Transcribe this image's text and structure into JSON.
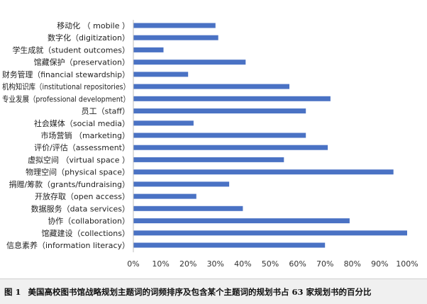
{
  "chart_data": {
    "type": "bar",
    "orientation": "horizontal",
    "categories": [
      "移动化 （ mobile ）",
      "数字化（digitization）",
      "学生成就（student outcomes）",
      "馆藏保护（preservation）",
      "财务管理（financial stewardship）",
      "机构知识库（institutional repositories）",
      "专业发展（professional development）",
      "员工（staff）",
      "社会媒体（social media）",
      "市场营销 （marketing）",
      "评价/评估（assessment）",
      "虚拟空间 （virtual space ）",
      "物理空间（physical space）",
      "捐赠/筹款（grants/fundraising）",
      "开放存取（open access）",
      "数据服务（data services）",
      "协作（collaboration）",
      "馆藏建设（collections）",
      "信息素养（information literacy）"
    ],
    "values": [
      30,
      31,
      11,
      41,
      20,
      57,
      72,
      63,
      22,
      63,
      71,
      55,
      95,
      35,
      23,
      40,
      79,
      100,
      70
    ],
    "xlim": [
      0,
      100
    ],
    "xticks": [
      "0%",
      "10%",
      "20%",
      "30%",
      "40%",
      "50%",
      "60%",
      "70%",
      "80%",
      "90%",
      "100%"
    ],
    "grid": false,
    "bar_color": "#4a72c4"
  },
  "caption": {
    "label": "图 1",
    "text": "美国高校图书馆战略规划主题词的词频排序及包含某个主题词的规划书占 63 家规划书的百分比"
  }
}
